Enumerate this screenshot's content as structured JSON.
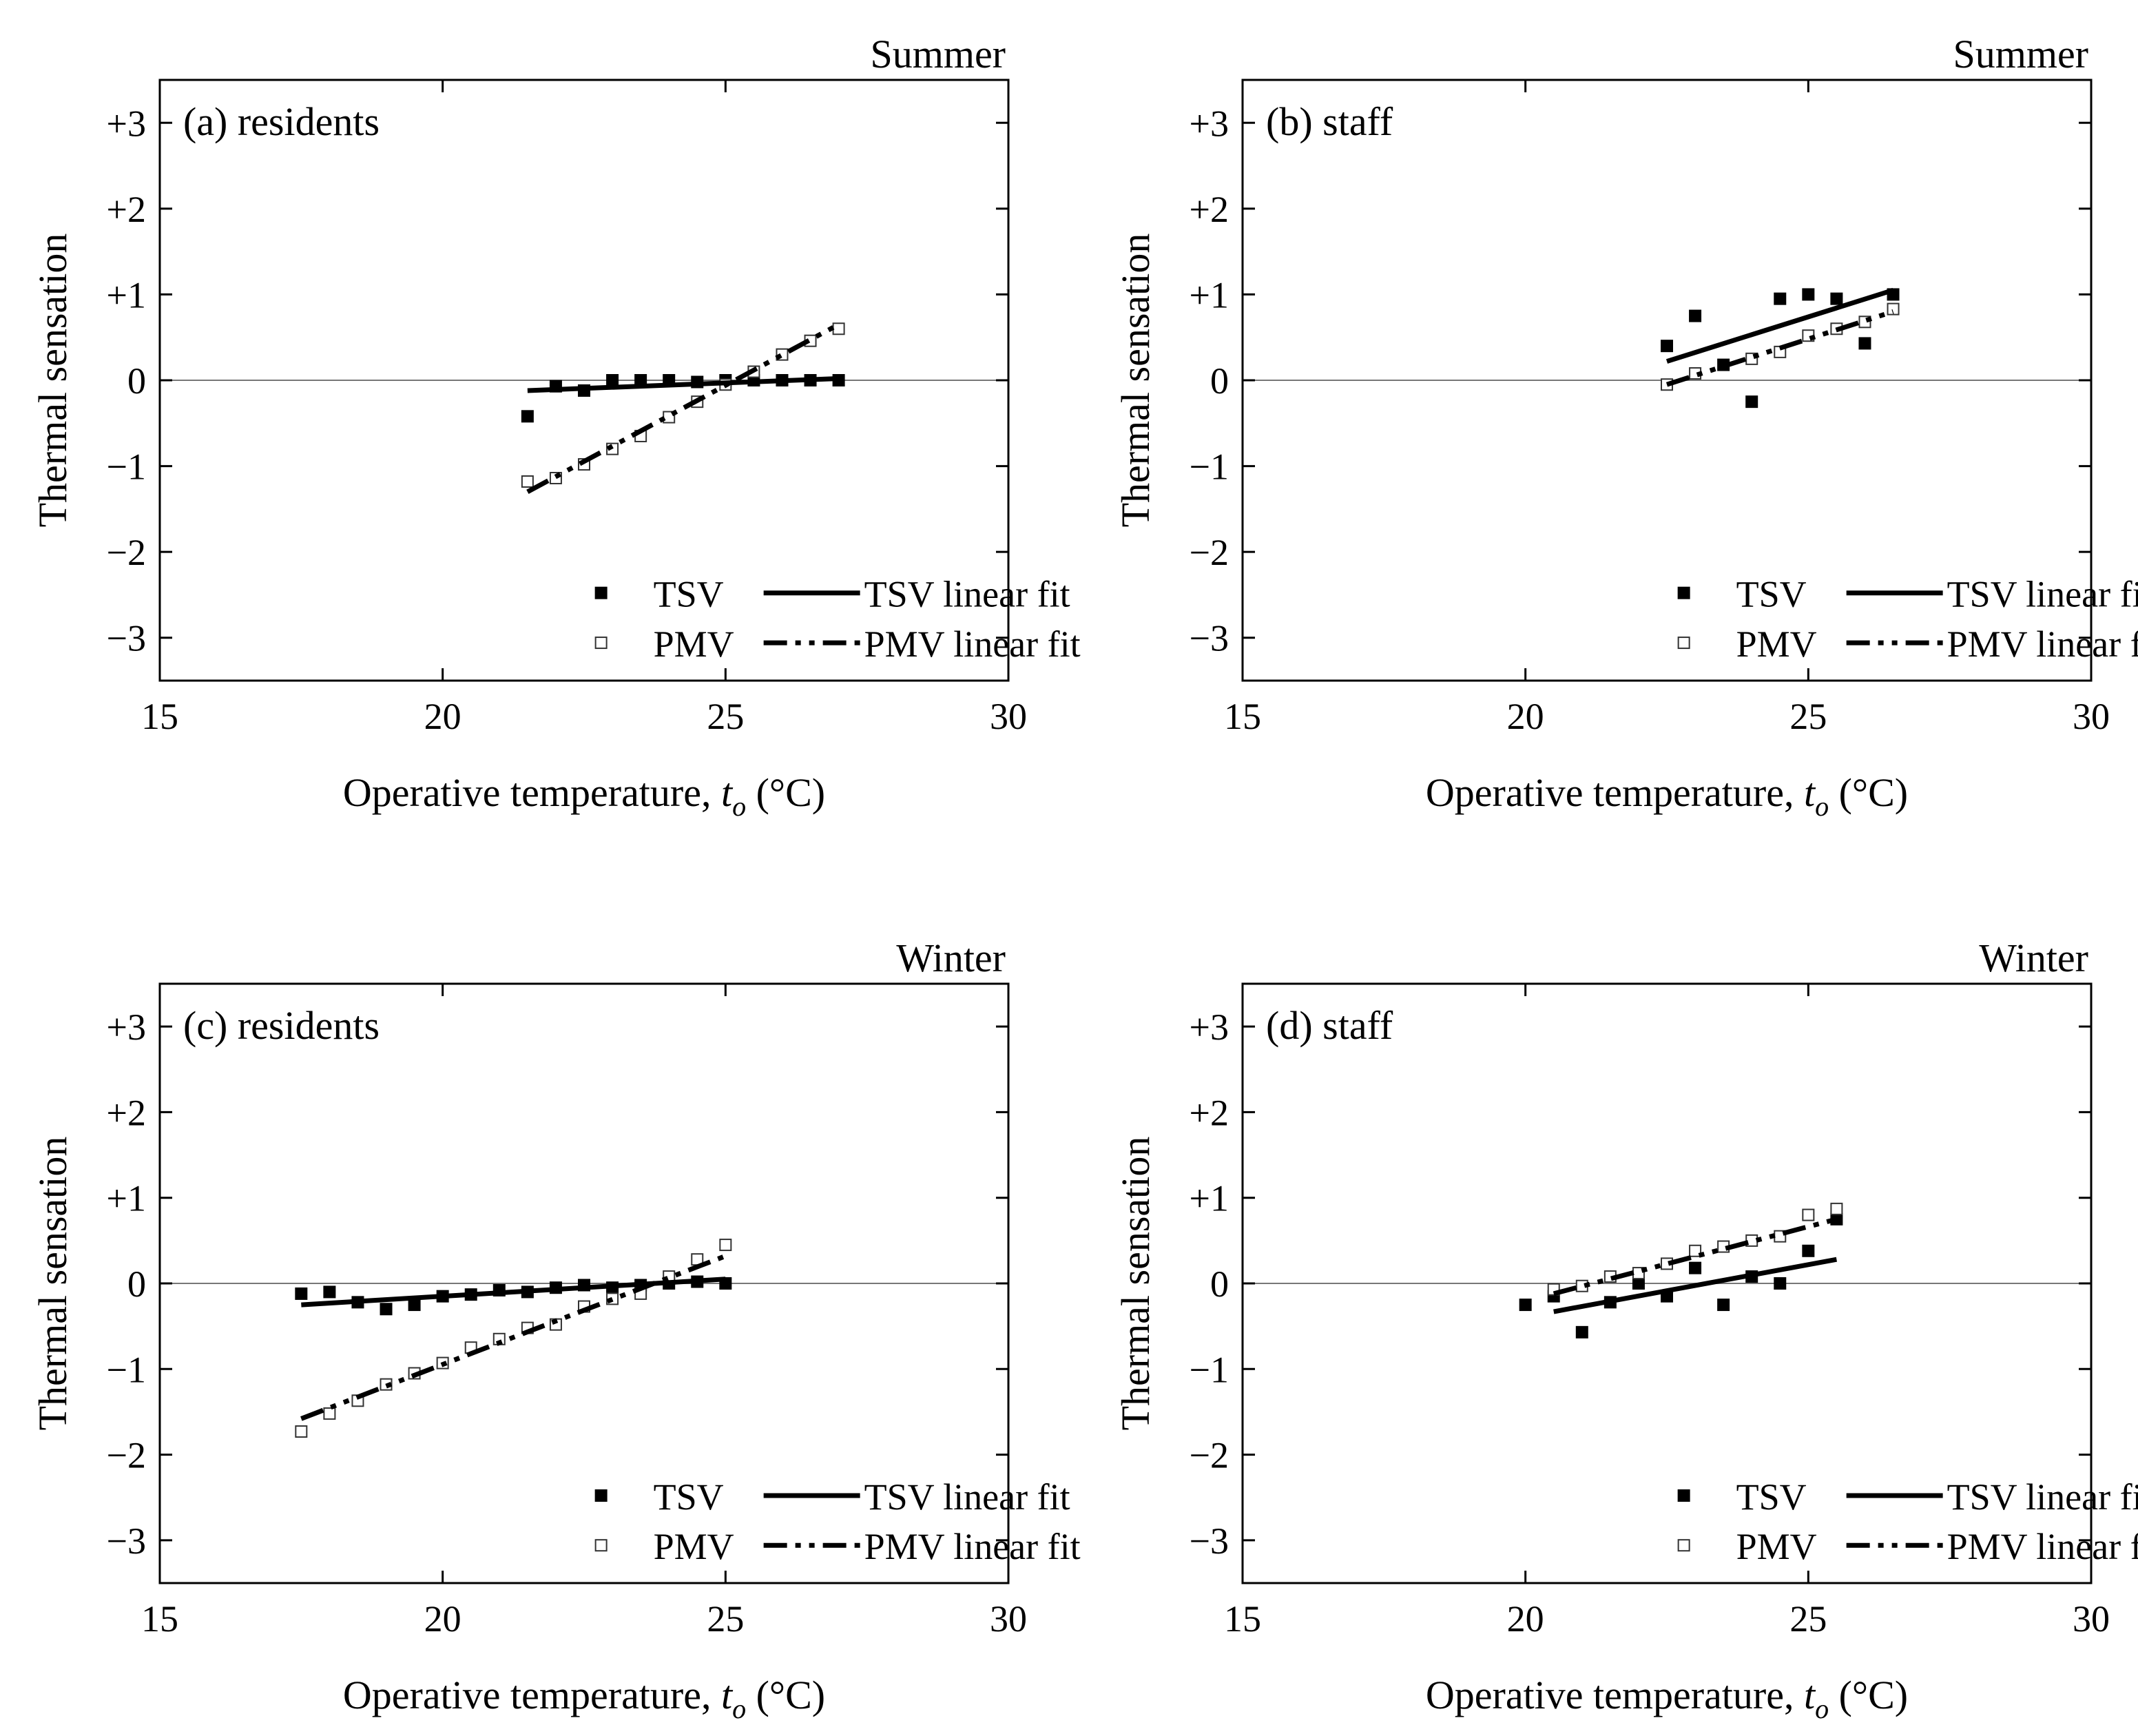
{
  "legend": {
    "tsv": "TSV",
    "pmv": "PMV",
    "tsv_fit": "TSV linear fit",
    "pmv_fit": "PMV linear fit"
  },
  "axis_text": {
    "ylabel": "Thermal sensation",
    "xlabel_main": "Operative temperature, ",
    "xlabel_var": "t",
    "xlabel_sub": "o",
    "xlabel_unit": " (°C)"
  },
  "colors": {
    "marks": "#000000",
    "zero_line": "#777777"
  },
  "chart_data": [
    {
      "type": "scatter",
      "panel_label": "(a) residents",
      "season": "Summer",
      "xlim": [
        15,
        30
      ],
      "ylim": [
        -3.5,
        3.5
      ],
      "xticks": [
        "15",
        "20",
        "25",
        "30"
      ],
      "yticks": [
        "+3",
        "+2",
        "+1",
        "0",
        "−1",
        "−2",
        "−3"
      ],
      "grid": false,
      "legend_position": "bottom-right",
      "series": [
        {
          "name": "TSV",
          "marker": "filled-square",
          "x": [
            21.5,
            22,
            22.5,
            23,
            23.5,
            24,
            24.5,
            25,
            25.5,
            26,
            26.5,
            27
          ],
          "y": [
            -0.42,
            -0.07,
            -0.12,
            0.0,
            0.0,
            0.0,
            -0.02,
            0.0,
            0.0,
            0.0,
            0.0,
            0.0
          ]
        },
        {
          "name": "PMV",
          "marker": "open-square",
          "x": [
            21.5,
            22,
            22.5,
            23,
            23.5,
            24,
            24.5,
            25,
            25.5,
            26,
            26.5,
            27
          ],
          "y": [
            -1.18,
            -1.14,
            -0.98,
            -0.8,
            -0.65,
            -0.43,
            -0.25,
            -0.05,
            0.1,
            0.3,
            0.46,
            0.6
          ]
        },
        {
          "name": "TSV linear fit",
          "line": "solid",
          "x": [
            21.5,
            27
          ],
          "y": [
            -0.12,
            0.02
          ]
        },
        {
          "name": "PMV linear fit",
          "line": "dash-dot-dot",
          "x": [
            21.5,
            27
          ],
          "y": [
            -1.3,
            0.65
          ]
        }
      ]
    },
    {
      "type": "scatter",
      "panel_label": "(b) staff",
      "season": "Summer",
      "xlim": [
        15,
        30
      ],
      "ylim": [
        -3.5,
        3.5
      ],
      "xticks": [
        "15",
        "20",
        "25",
        "30"
      ],
      "yticks": [
        "+3",
        "+2",
        "+1",
        "0",
        "−1",
        "−2",
        "−3"
      ],
      "grid": false,
      "legend_position": "bottom-right",
      "series": [
        {
          "name": "TSV",
          "marker": "filled-square",
          "x": [
            22.5,
            23,
            23.5,
            24,
            24.5,
            25,
            25.5,
            26,
            26.5
          ],
          "y": [
            0.4,
            0.75,
            0.18,
            -0.25,
            0.95,
            1.0,
            0.95,
            0.43,
            1.0
          ]
        },
        {
          "name": "PMV",
          "marker": "open-square",
          "x": [
            22.5,
            23,
            24,
            24.5,
            25,
            25.5,
            26,
            26.5
          ],
          "y": [
            -0.05,
            0.08,
            0.25,
            0.33,
            0.52,
            0.6,
            0.68,
            0.83
          ]
        },
        {
          "name": "TSV linear fit",
          "line": "solid",
          "x": [
            22.5,
            26.5
          ],
          "y": [
            0.22,
            1.05
          ]
        },
        {
          "name": "PMV linear fit",
          "line": "dash-dot-dot",
          "x": [
            22.5,
            26.5
          ],
          "y": [
            -0.05,
            0.8
          ]
        }
      ]
    },
    {
      "type": "scatter",
      "panel_label": "(c) residents",
      "season": "Winter",
      "xlim": [
        15,
        30
      ],
      "ylim": [
        -3.5,
        3.5
      ],
      "xticks": [
        "15",
        "20",
        "25",
        "30"
      ],
      "yticks": [
        "+3",
        "+2",
        "+1",
        "0",
        "−1",
        "−2",
        "−3"
      ],
      "grid": false,
      "legend_position": "bottom-right",
      "series": [
        {
          "name": "TSV",
          "marker": "filled-square",
          "x": [
            17.5,
            18,
            18.5,
            19,
            19.5,
            20,
            20.5,
            21,
            21.5,
            22,
            22.5,
            23,
            23.5,
            24,
            24.5,
            25
          ],
          "y": [
            -0.12,
            -0.1,
            -0.22,
            -0.3,
            -0.25,
            -0.15,
            -0.13,
            -0.08,
            -0.1,
            -0.05,
            -0.02,
            -0.05,
            -0.02,
            0.0,
            0.02,
            0.0
          ]
        },
        {
          "name": "PMV",
          "marker": "open-square",
          "x": [
            17.5,
            18,
            18.5,
            19,
            19.5,
            20,
            20.5,
            21,
            21.5,
            22,
            22.5,
            23,
            23.5,
            24,
            24.5,
            25
          ],
          "y": [
            -1.73,
            -1.52,
            -1.37,
            -1.18,
            -1.05,
            -0.93,
            -0.75,
            -0.65,
            -0.52,
            -0.48,
            -0.27,
            -0.18,
            -0.12,
            0.08,
            0.28,
            0.45
          ]
        },
        {
          "name": "TSV linear fit",
          "line": "solid",
          "x": [
            17.5,
            25
          ],
          "y": [
            -0.25,
            0.05
          ]
        },
        {
          "name": "PMV linear fit",
          "line": "dash-dot-dot",
          "x": [
            17.5,
            25
          ],
          "y": [
            -1.58,
            0.32
          ]
        }
      ]
    },
    {
      "type": "scatter",
      "panel_label": "(d) staff",
      "season": "Winter",
      "xlim": [
        15,
        30
      ],
      "ylim": [
        -3.5,
        3.5
      ],
      "xticks": [
        "15",
        "20",
        "25",
        "30"
      ],
      "yticks": [
        "+3",
        "+2",
        "+1",
        "0",
        "−1",
        "−2",
        "−3"
      ],
      "grid": false,
      "legend_position": "bottom-right",
      "series": [
        {
          "name": "TSV",
          "marker": "filled-square",
          "x": [
            20,
            20.5,
            21,
            21.5,
            22,
            22.5,
            23,
            23.5,
            24,
            24.5,
            25,
            25.5
          ],
          "y": [
            -0.25,
            -0.15,
            -0.57,
            -0.22,
            0.0,
            -0.15,
            0.18,
            -0.25,
            0.08,
            0.0,
            0.38,
            0.75
          ]
        },
        {
          "name": "PMV",
          "marker": "open-square",
          "x": [
            20.5,
            21,
            21.5,
            22,
            22.5,
            23,
            23.5,
            24,
            24.5,
            25,
            25.5
          ],
          "y": [
            -0.07,
            -0.03,
            0.08,
            0.12,
            0.23,
            0.38,
            0.43,
            0.5,
            0.55,
            0.8,
            0.87
          ]
        },
        {
          "name": "TSV linear fit",
          "line": "solid",
          "x": [
            20.5,
            25.5
          ],
          "y": [
            -0.33,
            0.28
          ]
        },
        {
          "name": "PMV linear fit",
          "line": "dash-dot-dot",
          "x": [
            20.5,
            25.5
          ],
          "y": [
            -0.12,
            0.75
          ]
        }
      ]
    }
  ]
}
